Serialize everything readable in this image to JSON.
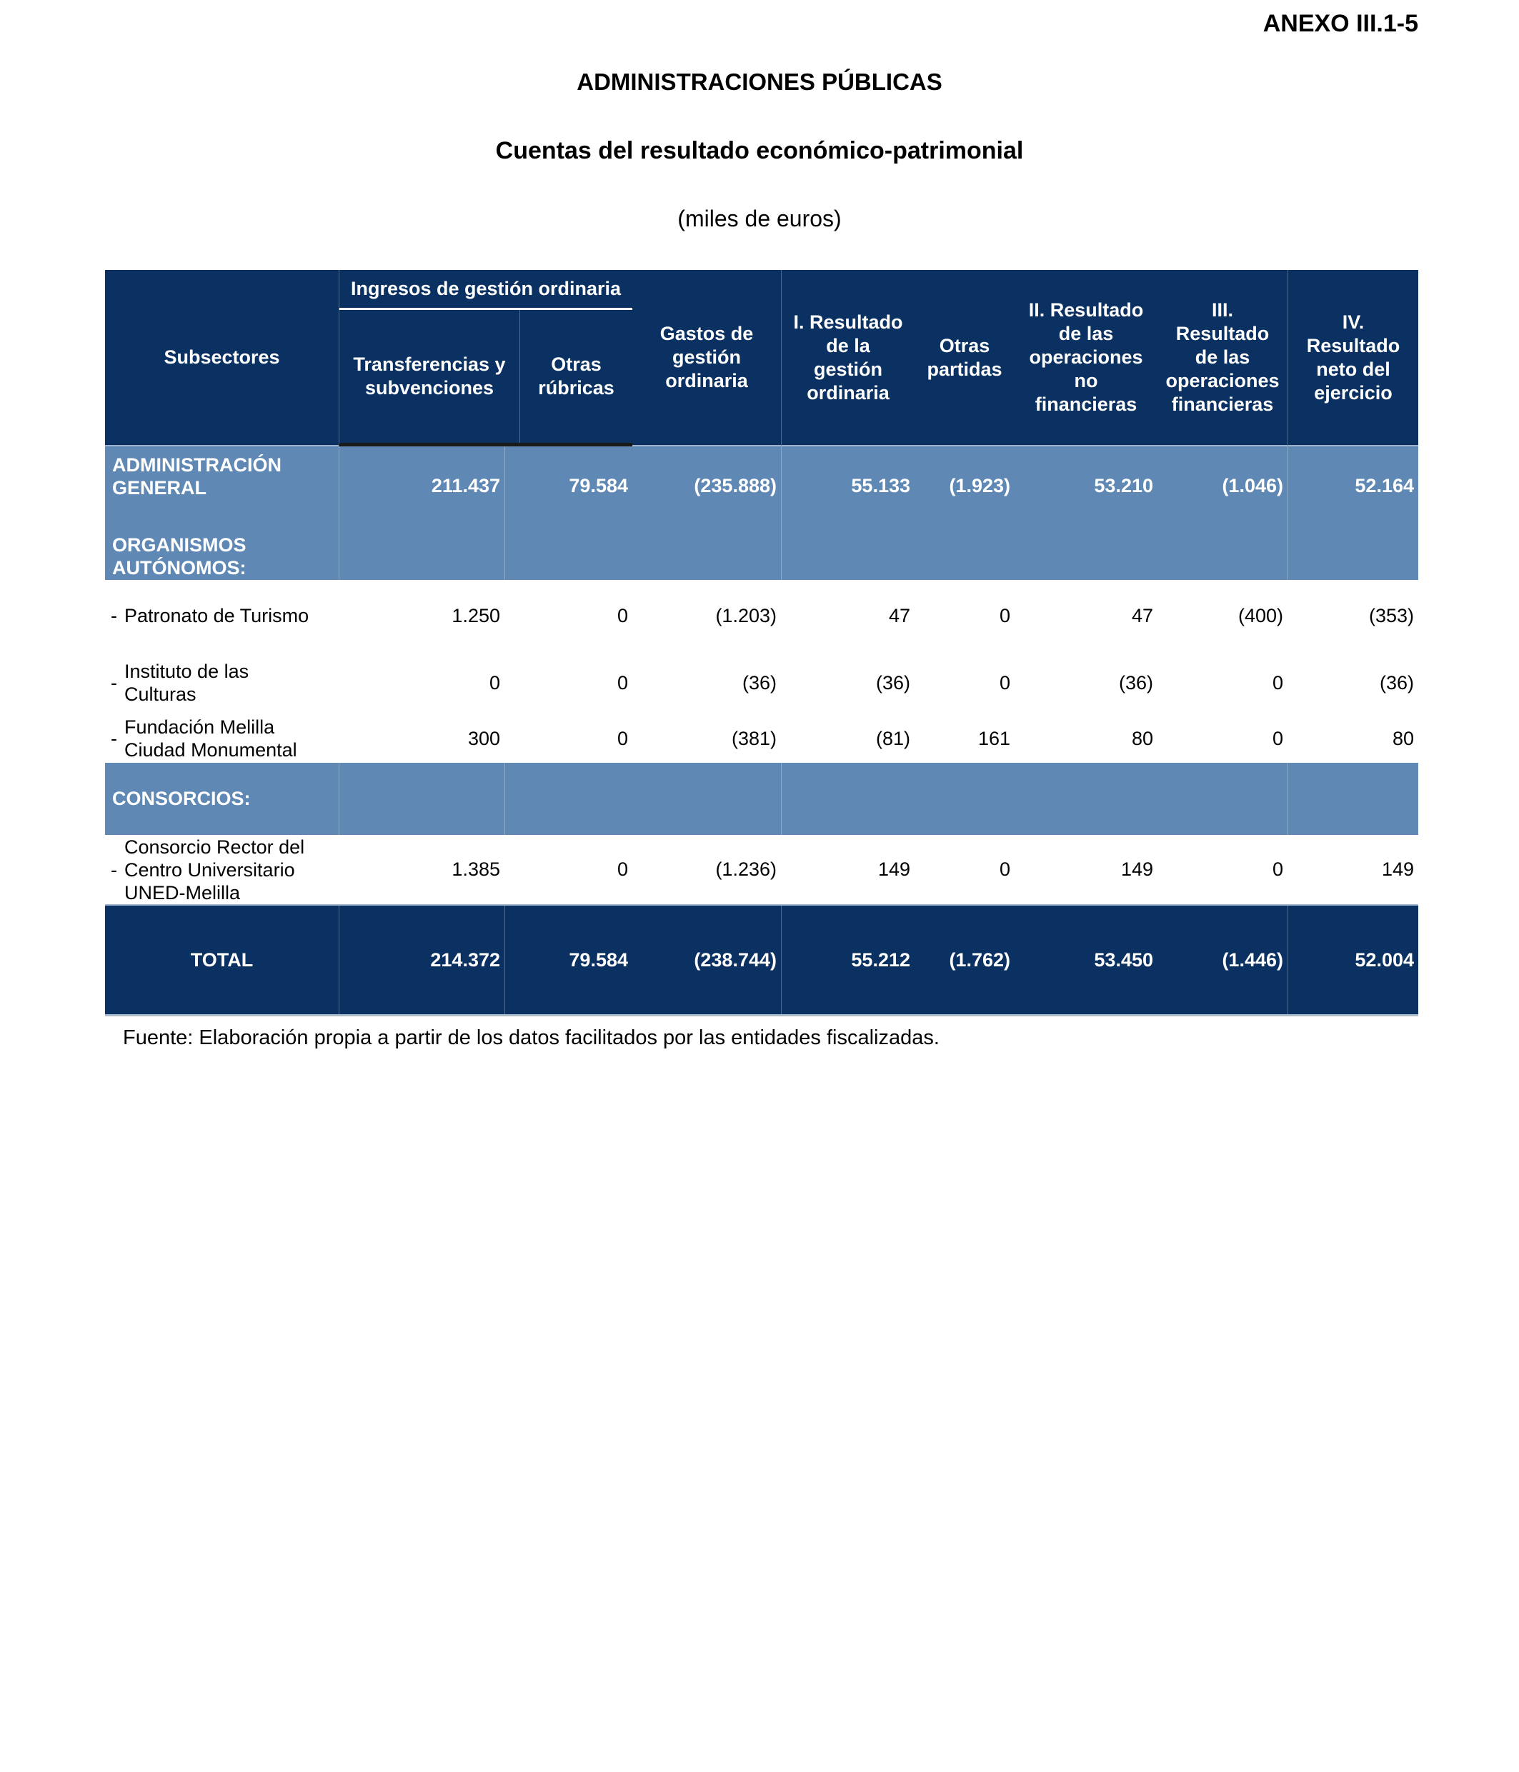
{
  "page": {
    "annex": "ANEXO III.1-5",
    "title": "ADMINISTRACIONES PÚBLICAS",
    "subtitle": "Cuentas del resultado económico-patrimonial",
    "unit_note": "(miles de euros)",
    "source_note": "Fuente: Elaboración propia a partir de los datos facilitados por las entidades fiscalizadas."
  },
  "colors": {
    "header_navy": "#0A3161",
    "section_blue": "#5F88B4",
    "light_rule": "#9FB3CE",
    "black_rule": "#1A1A1A",
    "header_text": "#FFFFFF",
    "body_text": "#000000"
  },
  "table": {
    "bullet": "-",
    "header": {
      "subsectores": "Subsectores",
      "ingresos_group": "Ingresos de gestión ordinaria",
      "col_transferencias": "Transferencias y subvenciones",
      "col_otras_rubricas": "Otras rúbricas",
      "col_gastos": "Gastos de gestión ordinaria",
      "col_resultado_gestion": "I. Resultado de la gestión ordinaria",
      "col_otras_partidas": "Otras partidas",
      "col_resultado_no_financieras": "II. Resultado de las operaciones no financieras",
      "col_resultado_financieras": "III. Resultado de las operaciones financieras",
      "col_resultado_neto": "IV. Resultado neto del ejercicio"
    },
    "rows": [
      {
        "label": "ADMINISTRACIÓN GENERAL",
        "label2": "ORGANISMOS AUTÓNOMOS:",
        "type": "admin",
        "values": [
          "211.437",
          "79.584",
          "(235.888)",
          "55.133",
          "(1.923)",
          "53.210",
          "(1.046)",
          "52.164"
        ]
      },
      {
        "label": "Patronato de Turismo",
        "type": "item",
        "values": [
          "1.250",
          "0",
          "(1.203)",
          "47",
          "0",
          "47",
          "(400)",
          "(353)"
        ]
      },
      {
        "label": "Instituto de las Culturas",
        "type": "item",
        "values": [
          "0",
          "0",
          "(36)",
          "(36)",
          "0",
          "(36)",
          "0",
          "(36)"
        ]
      },
      {
        "label": "Fundación Melilla Ciudad Monumental",
        "type": "item",
        "values": [
          "300",
          "0",
          "(381)",
          "(81)",
          "161",
          "80",
          "0",
          "80"
        ]
      },
      {
        "label": "CONSORCIOS:",
        "type": "section",
        "values": [
          "",
          "",
          "",
          "",
          "",
          "",
          "",
          ""
        ]
      },
      {
        "label": "Consorcio Rector del Centro Universitario UNED-Melilla",
        "type": "item",
        "values": [
          "1.385",
          "0",
          "(1.236)",
          "149",
          "0",
          "149",
          "0",
          "149"
        ]
      },
      {
        "label": "TOTAL",
        "type": "total",
        "values": [
          "214.372",
          "79.584",
          "(238.744)",
          "55.212",
          "(1.762)",
          "53.450",
          "(1.446)",
          "52.004"
        ]
      }
    ]
  }
}
